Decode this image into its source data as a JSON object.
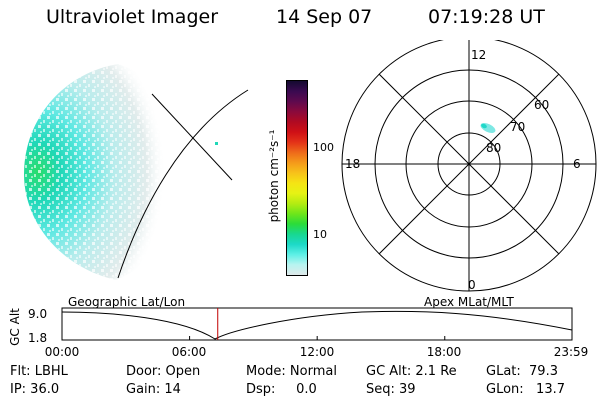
{
  "header": {
    "instrument": "Ultraviolet Imager",
    "date": "14 Sep 07",
    "time": "07:19:28 UT"
  },
  "colorbar": {
    "label": "photon cm⁻²s⁻¹",
    "ticks": [
      "100",
      "10"
    ],
    "colors": [
      "#dfe9ea",
      "#b8f4f0",
      "#5ef0e6",
      "#1dd9c8",
      "#18d890",
      "#2bdc3a",
      "#6ee61a",
      "#b4ec12",
      "#e6f214",
      "#f5e414",
      "#f7c21a",
      "#f59a1a",
      "#ee6a1a",
      "#e43218",
      "#cf1016",
      "#b00a22",
      "#8a0a3c",
      "#5e0a4e",
      "#3a0a50",
      "#140a30"
    ]
  },
  "polar_plot": {
    "mlt_labels": [
      "12",
      "18",
      "6",
      "0"
    ],
    "lat_labels": [
      "60",
      "70",
      "80"
    ]
  },
  "timeline": {
    "axis_title": "GC Alt",
    "y_ticks": [
      "9.0",
      "1.8"
    ],
    "left_label": "Geographic Lat/Lon",
    "right_label": "Apex MLat/MLT",
    "x_ticks": [
      "00:00",
      "06:00",
      "12:00",
      "18:00",
      "23:59"
    ],
    "current_time_hours": 7.324
  },
  "info": {
    "flt": "Flt: LBHL",
    "ip": "IP: 36.0",
    "door": "Door: Open",
    "gain": "Gain: 14",
    "mode": "Mode: Normal",
    "dsp": "Dsp:     0.0",
    "gc_alt": "GC Alt: 2.1 Re",
    "seq": "Seq: 39",
    "glat": "GLat:  79.3",
    "glon": "GLon:   13.7"
  }
}
